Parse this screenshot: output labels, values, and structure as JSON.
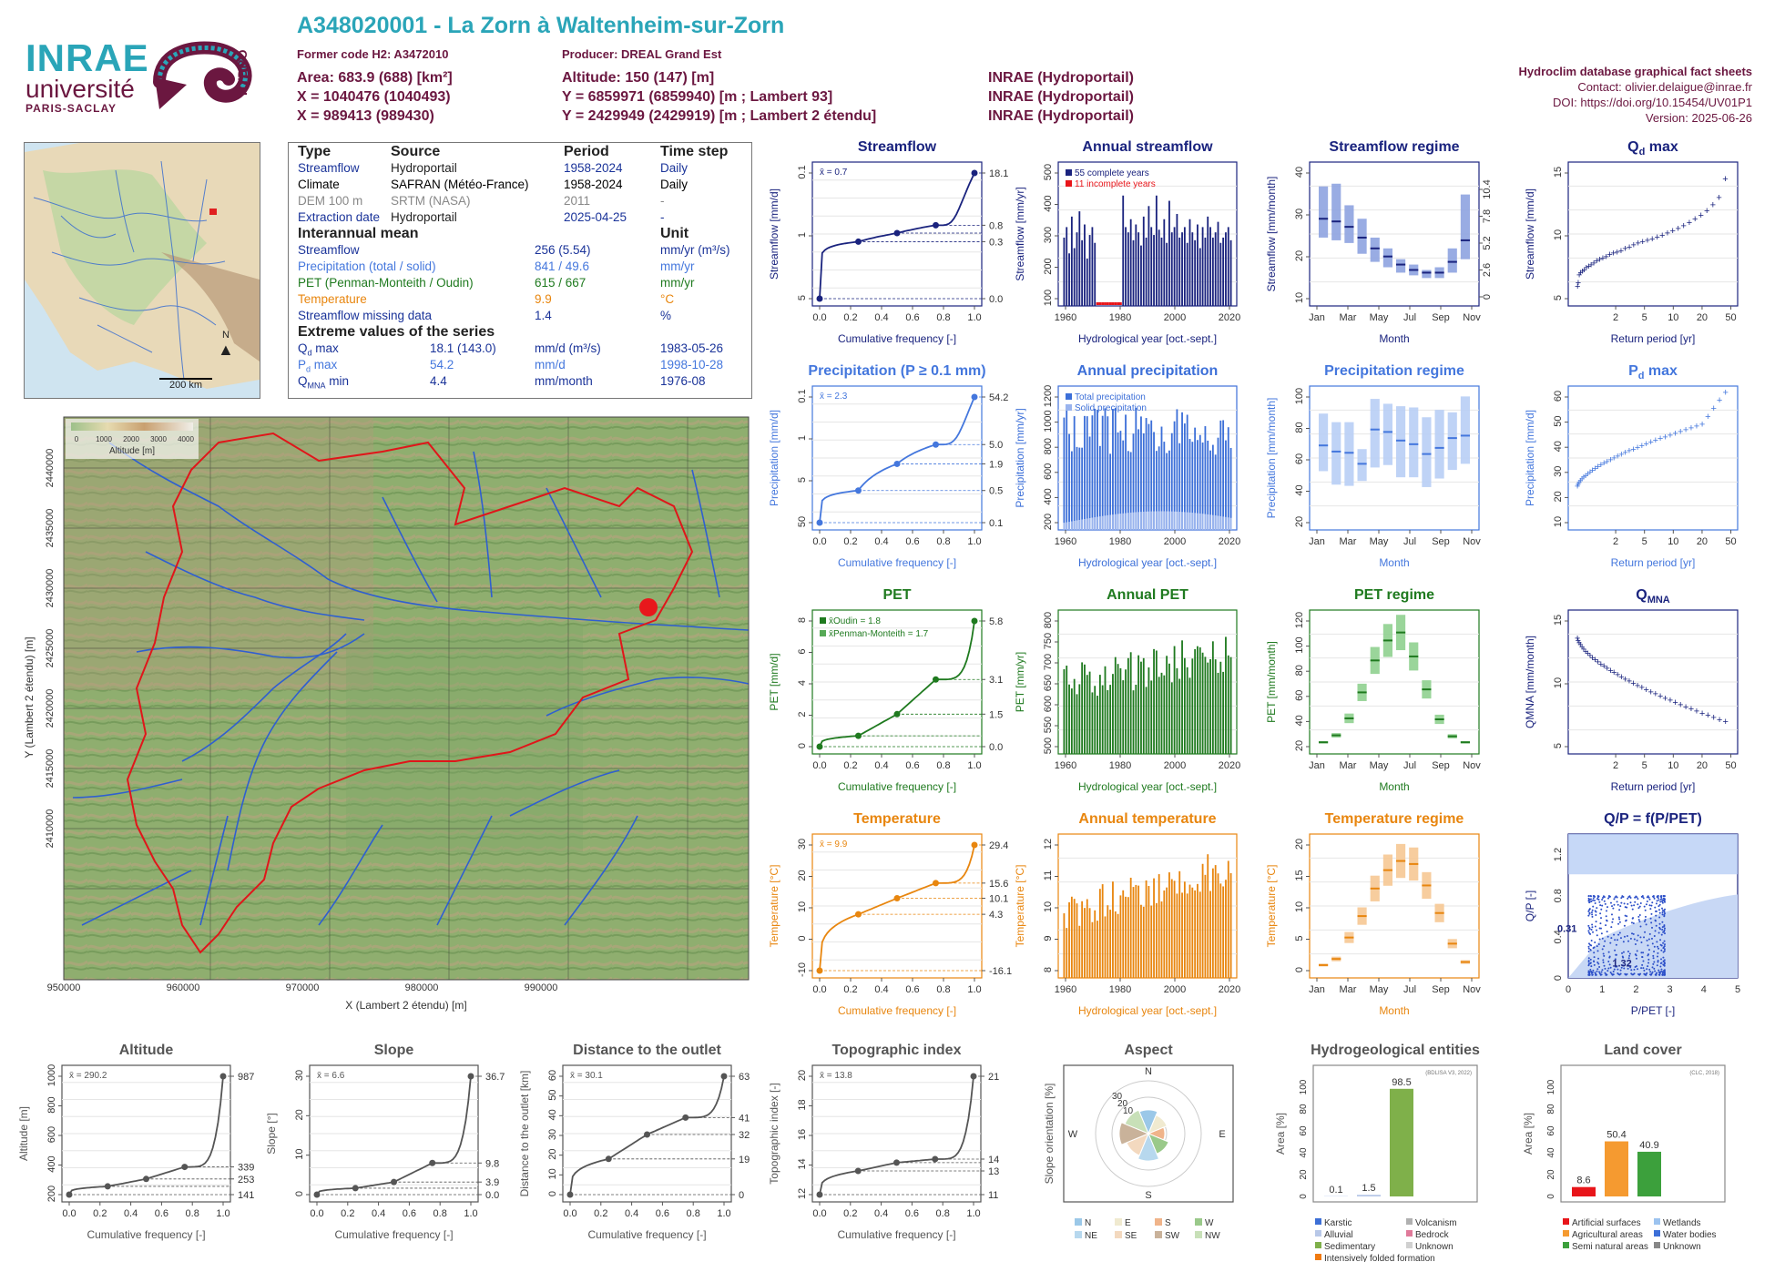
{
  "logos": {
    "inrae": "INRAE",
    "universite": "université",
    "paris_saclay": "PARIS-SACLAY",
    "hydro": "HYDRO"
  },
  "header": {
    "station_title": "A348020001 - La Zorn à Waltenheim-sur-Zorn",
    "former_code": "Former code H2: A3472010",
    "producer": "Producer: DREAL Grand Est",
    "area": "Area: 683.9 (688) [km²]",
    "altitude": "Altitude: 150 (147) [m]",
    "x93": "X = 1040476 (1040493)",
    "y93": "Y = 6859971 (6859940) [m ; Lambert 93]",
    "src1": "INRAE (Hydroportail)",
    "x2e": "X = 989413 (989430)",
    "y2e": "Y = 2429949 (2429919) [m ; Lambert 2 étendu]",
    "src2": "INRAE (Hydroportail)",
    "db": "Hydroclim database graphical fact sheets",
    "contact": "Contact: olivier.delaigue@inrae.fr",
    "doi": "DOI: https://doi.org/10.15454/UV01P1",
    "version": "Version: 2025-06-26"
  },
  "overview_map": {
    "scale": "200 km",
    "north": "N"
  },
  "info_table": {
    "h_type": "Type",
    "h_source": "Source",
    "h_period": "Period",
    "h_timestep": "Time step",
    "rows": [
      {
        "type": "Streamflow",
        "source": "Hydroportail",
        "period": "1958-2024",
        "step": "Daily",
        "color": "#1a3399"
      },
      {
        "type": "Climate",
        "source": "SAFRAN (Météo-France)",
        "period": "1958-2024",
        "step": "Daily",
        "color": "#000000"
      },
      {
        "type": "DEM 100 m",
        "source": "SRTM (NASA)",
        "period": "2011",
        "step": "-",
        "color": "#888888"
      },
      {
        "type": "Extraction date",
        "source": "Hydroportail",
        "period": "2025-04-25",
        "step": "-",
        "color": "#1a3399"
      }
    ],
    "h_interannual": "Interannual mean",
    "h_unit": "Unit",
    "means": [
      {
        "name": "Streamflow",
        "value": "256 (5.54)",
        "unit": "mm/yr (m³/s)",
        "color": "#1a3399"
      },
      {
        "name": "Precipitation (total / solid)",
        "value": "841 / 49.6",
        "unit": "mm/yr",
        "color": "#4477dd"
      },
      {
        "name": "PET (Penman-Monteith / Oudin)",
        "value": "615 / 667",
        "unit": "mm/yr",
        "color": "#1f7a1f"
      },
      {
        "name": "Temperature",
        "value": "9.9",
        "unit": "°C",
        "color": "#e8860f"
      },
      {
        "name": "Streamflow missing data",
        "value": "1.4",
        "unit": "%",
        "color": "#1a3399"
      }
    ],
    "h_extreme": "Extreme values of the series",
    "extremes": [
      {
        "sym": "Q",
        "sub": "d",
        "suffix": " max",
        "value": "18.1 (143.0)",
        "unit": "mm/d (m³/s)",
        "date": "1983-05-26",
        "color": "#1a3399"
      },
      {
        "sym": "P",
        "sub": "d",
        "suffix": " max",
        "value": "54.2",
        "unit": "mm/d",
        "date": "1998-10-28",
        "color": "#4477dd"
      },
      {
        "sym": "Q",
        "sub": "MNA",
        "suffix": " min",
        "value": "4.4",
        "unit": "mm/month",
        "date": "1976-08",
        "color": "#1a3399"
      }
    ]
  },
  "relief_map": {
    "legend_ticks": [
      "0",
      "1000",
      "2000",
      "3000",
      "4000"
    ],
    "legend_label": "Altitude [m]",
    "x_ticks": [
      "950000",
      "960000",
      "970000",
      "980000",
      "990000"
    ],
    "y_ticks": [
      "2440000",
      "2435000",
      "2430000",
      "2425000",
      "2420000",
      "2415000",
      "2410000"
    ],
    "xlabel": "X (Lambert 2 étendu) [m]",
    "ylabel": "Y (Lambert 2 étendu) [m]"
  },
  "chart_data": [
    {
      "id": "streamflow_cdf",
      "type": "line",
      "title": "Streamflow",
      "xlabel": "Cumulative frequency [-]",
      "ylabel": "Streamflow [mm/d]",
      "scale": "log",
      "mean_label": "x̄ = 0.7",
      "color": "#1a237e",
      "x": [
        0,
        0.25,
        0.5,
        0.75,
        1
      ],
      "y": [
        0.0,
        0.3,
        0.5,
        0.8,
        18.1
      ],
      "right_ticks": [
        "18.1",
        "0.8",
        "0.3",
        "0.0"
      ],
      "left_ticks": [
        "5",
        "1",
        "0.1"
      ],
      "x_ticks": [
        "0.0",
        "0.2",
        "0.4",
        "0.6",
        "0.8",
        "1.0"
      ]
    },
    {
      "id": "annual_streamflow",
      "type": "bar",
      "title": "Annual streamflow",
      "xlabel": "Hydrological year [oct.-sept.]",
      "ylabel": "Streamflow [mm/yr]",
      "color": "#1a237e",
      "legend": [
        "55 complete years",
        "11 incomplete years"
      ],
      "x_ticks": [
        "1960",
        "1980",
        "2000",
        "2020"
      ],
      "y_ticks": [
        "100",
        "200",
        "300",
        "400",
        "500"
      ],
      "values": [
        260,
        300,
        200,
        340,
        220,
        280,
        360,
        250,
        310,
        180,
        270,
        300,
        240,
        0,
        0,
        0,
        0,
        0,
        0,
        0,
        0,
        0,
        0,
        420,
        300,
        280,
        330,
        250,
        310,
        280,
        230,
        340,
        260,
        380,
        300,
        270,
        420,
        290,
        260,
        330,
        240,
        400,
        280,
        300,
        350,
        260,
        280,
        300,
        240,
        330,
        280,
        250,
        310,
        220,
        300,
        260,
        340,
        300,
        260,
        280,
        320,
        240,
        260,
        280,
        300,
        250
      ]
    },
    {
      "id": "streamflow_regime",
      "type": "bar",
      "title": "Streamflow regime",
      "xlabel": "Month",
      "ylabel": "Streamflow [mm/month]",
      "color": "#a8b8e8",
      "categories": [
        "Jan",
        "Feb",
        "Mar",
        "Apr",
        "May",
        "Jun",
        "Jul",
        "Aug",
        "Sep",
        "Oct",
        "Nov",
        "Dec"
      ],
      "x_ticks": [
        "Jan",
        "Mar",
        "May",
        "Jul",
        "Sep",
        "Nov"
      ],
      "median": [
        31,
        30,
        28,
        24,
        20,
        17,
        14,
        12,
        11,
        11,
        15,
        23
      ],
      "low": [
        24,
        23,
        22,
        18,
        15,
        13,
        11,
        10,
        9,
        9,
        11,
        16
      ],
      "high": [
        43,
        44,
        36,
        31,
        24,
        20,
        16,
        14,
        12,
        13,
        20,
        40
      ],
      "y_ticks": [
        "10",
        "20",
        "30",
        "40"
      ],
      "right_ticks": [
        "10.4",
        "7.8",
        "5.2",
        "2.6",
        "0"
      ]
    },
    {
      "id": "qd_max",
      "type": "scatter",
      "title": "Q",
      "title_sub": "d",
      "title_suffix": " max",
      "xlabel": "Return period [yr]",
      "ylabel": "Streamflow [mm/d]",
      "color": "#1a237e",
      "x_ticks": [
        "2",
        "5",
        "10",
        "20",
        "50"
      ],
      "y_ticks": [
        "5",
        "10",
        "15"
      ],
      "y": [
        1.5,
        2,
        3,
        3.3,
        3.5,
        3.7,
        4,
        4.2,
        4.4,
        4.6,
        4.9,
        5.1,
        5.3,
        5.5,
        5.8,
        6,
        6.1,
        6.3,
        6.6,
        6.8,
        7.1,
        7.3,
        7.5,
        7.7,
        7.9,
        8.1,
        8.4,
        8.7,
        9,
        9.3,
        9.7,
        10.1,
        10.6,
        11.1,
        11.7,
        12.5,
        13.5,
        16
      ]
    },
    {
      "id": "precip_cdf",
      "type": "line",
      "title": "Precipitation (P ≥ 0.1 mm)",
      "xlabel": "Cumulative frequency [-]",
      "ylabel": "Precipitation [mm/d]",
      "scale": "log",
      "mean_label": "x̄ = 2.3",
      "color": "#4477dd",
      "x": [
        0,
        0.25,
        0.5,
        0.75,
        1
      ],
      "y": [
        0.1,
        0.5,
        1.9,
        5.0,
        54.2
      ],
      "right_ticks": [
        "54.2",
        "5.0",
        "1.9",
        "0.5",
        "0.1"
      ],
      "left_ticks": [
        "50",
        "5",
        "1",
        "0.1"
      ],
      "x_ticks": [
        "0.0",
        "0.2",
        "0.4",
        "0.6",
        "0.8",
        "1.0"
      ]
    },
    {
      "id": "annual_precip",
      "type": "bar",
      "title": "Annual precipitation",
      "xlabel": "Hydrological year [oct.-sept.]",
      "ylabel": "Precipitation [mm/yr]",
      "color": "#4477dd",
      "legend": [
        "Total precipitation",
        "Solid precipitation"
      ],
      "x_ticks": [
        "1960",
        "1980",
        "2000",
        "2020"
      ],
      "y_ticks": [
        "200",
        "400",
        "600",
        "800",
        "1000",
        "1200"
      ]
    },
    {
      "id": "precip_regime",
      "type": "bar",
      "title": "Precipitation regime",
      "xlabel": "Month",
      "ylabel": "Precipitation [mm/month]",
      "color": "#b8cef5",
      "median": [
        66,
        61,
        60,
        51,
        79,
        77,
        70,
        67,
        59,
        64,
        72,
        74
      ],
      "low": [
        45,
        34,
        33,
        37,
        48,
        50,
        40,
        40,
        32,
        39,
        46,
        51
      ],
      "high": [
        92,
        85,
        85,
        63,
        104,
        100,
        98,
        97,
        89,
        95,
        93,
        106
      ],
      "y_ticks": [
        "20",
        "40",
        "60",
        "80",
        "100"
      ],
      "x_ticks": [
        "Jan",
        "Mar",
        "May",
        "Jul",
        "Sep",
        "Nov"
      ]
    },
    {
      "id": "pd_max",
      "type": "scatter",
      "title": "P",
      "title_sub": "d",
      "title_suffix": " max",
      "xlabel": "Return period [yr]",
      "ylabel": "Precipitation [mm/d]",
      "color": "#4477dd",
      "x_ticks": [
        "2",
        "5",
        "10",
        "20",
        "50"
      ],
      "y_ticks": [
        "10",
        "20",
        "30",
        "40",
        "50",
        "60"
      ]
    },
    {
      "id": "pet_cdf",
      "type": "line",
      "title": "PET",
      "xlabel": "Cumulative frequency [-]",
      "ylabel": "PET [mm/d]",
      "color": "#1f7a1f",
      "legend": [
        "x̄Oudin = 1.8",
        "x̄Penman-Monteith = 1.7"
      ],
      "x": [
        0,
        0.25,
        0.5,
        0.75,
        1
      ],
      "y": [
        0.0,
        0.5,
        1.5,
        3.1,
        5.8
      ],
      "right_ticks": [
        "5.8",
        "3.1",
        "1.5",
        "0.0"
      ],
      "left_ticks": [
        "0",
        "2",
        "4",
        "6",
        "8"
      ],
      "x_ticks": [
        "0.0",
        "0.2",
        "0.4",
        "0.6",
        "0.8",
        "1.0"
      ]
    },
    {
      "id": "annual_pet",
      "type": "bar",
      "title": "Annual PET",
      "xlabel": "Hydrological year [oct.-sept.]",
      "ylabel": "PET [mm/yr]",
      "color": "#1f7a1f",
      "x_ticks": [
        "1960",
        "1980",
        "2000",
        "2020"
      ],
      "y_ticks": [
        "500",
        "550",
        "600",
        "650",
        "700",
        "750",
        "800"
      ]
    },
    {
      "id": "pet_regime",
      "type": "bar",
      "title": "PET regime",
      "xlabel": "Month",
      "ylabel": "PET [mm/month]",
      "color": "#1f7a1f",
      "median": [
        8,
        15,
        32,
        58,
        90,
        110,
        118,
        94,
        61,
        31,
        14,
        8
      ],
      "y_ticks": [
        "20",
        "40",
        "60",
        "80",
        "100",
        "120"
      ],
      "x_ticks": [
        "Jan",
        "Mar",
        "May",
        "Jul",
        "Sep",
        "Nov"
      ]
    },
    {
      "id": "qmna",
      "type": "scatter",
      "title": "Q",
      "title_sub": "MNA",
      "title_suffix": "",
      "xlabel": "Return period [yr]",
      "ylabel": "QMNA [mm/month]",
      "color": "#1a237e",
      "x_ticks": [
        "2",
        "5",
        "10",
        "20",
        "50"
      ],
      "y_ticks": [
        "5",
        "10",
        "15"
      ]
    },
    {
      "id": "temp_cdf",
      "type": "line",
      "title": "Temperature",
      "xlabel": "Cumulative frequency [-]",
      "ylabel": "Temperature [°C]",
      "mean_label": "x̄ = 9.9",
      "color": "#e8860f",
      "x": [
        0,
        0.25,
        0.5,
        0.75,
        1
      ],
      "y": [
        -16.1,
        4.3,
        10.1,
        15.6,
        29.4
      ],
      "right_ticks": [
        "29.4",
        "15.6",
        "10.1",
        "4.3",
        "-16.1"
      ],
      "left_ticks": [
        "-10",
        "0",
        "10",
        "20",
        "30"
      ],
      "x_ticks": [
        "0.0",
        "0.2",
        "0.4",
        "0.6",
        "0.8",
        "1.0"
      ]
    },
    {
      "id": "annual_temp",
      "type": "bar",
      "title": "Annual temperature",
      "xlabel": "Hydrological year [oct.-sept.]",
      "ylabel": "Temperature [°C]",
      "color": "#e8860f",
      "x_ticks": [
        "1960",
        "1980",
        "2000",
        "2020"
      ],
      "y_ticks": [
        "8",
        "9",
        "10",
        "11",
        "12"
      ]
    },
    {
      "id": "temp_regime",
      "type": "bar",
      "title": "Temperature regime",
      "xlabel": "Month",
      "ylabel": "Temperature [°C]",
      "color": "#e8860f",
      "median": [
        1.5,
        2.5,
        6,
        9.5,
        14,
        17,
        18.5,
        18,
        14.5,
        10,
        5,
        2
      ],
      "y_ticks": [
        "0",
        "5",
        "10",
        "15",
        "20"
      ],
      "x_ticks": [
        "Jan",
        "Mar",
        "May",
        "Jul",
        "Sep",
        "Nov"
      ]
    },
    {
      "id": "qp_ppet",
      "type": "scatter",
      "title": "Q/P = f(P/PET)",
      "xlabel": "P/PET [-]",
      "ylabel": "Q/P [-]",
      "color": "#1a237e",
      "labels": [
        "0.31",
        "1.32"
      ],
      "x_ticks": [
        "0",
        "1",
        "2",
        "3",
        "4",
        "5"
      ],
      "y_ticks": [
        "0",
        "0.4",
        "0.8",
        "1.2"
      ]
    },
    {
      "id": "altitude_cdf",
      "type": "line",
      "title": "Altitude",
      "xlabel": "Cumulative frequency [-]",
      "ylabel": "Altitude [m]",
      "mean_label": "x̄ = 290.2",
      "color": "#555555",
      "x": [
        0,
        0.25,
        0.5,
        0.75,
        1
      ],
      "y": [
        141,
        200,
        253,
        339,
        987
      ],
      "right_ticks": [
        "987",
        "339",
        "253",
        "141"
      ],
      "left_ticks": [
        "200",
        "400",
        "600",
        "800",
        "1000"
      ],
      "x_ticks": [
        "0.0",
        "0.2",
        "0.4",
        "0.6",
        "0.8",
        "1.0"
      ]
    },
    {
      "id": "slope_cdf",
      "type": "line",
      "title": "Slope",
      "xlabel": "Cumulative frequency [-]",
      "ylabel": "Slope [°]",
      "mean_label": "x̄ = 6.6",
      "color": "#555555",
      "x": [
        0,
        0.25,
        0.5,
        0.75,
        1
      ],
      "y": [
        0,
        2,
        3.9,
        9.8,
        36.7
      ],
      "right_ticks": [
        "36.7",
        "9.8",
        "3.9",
        "0.0"
      ],
      "left_ticks": [
        "0",
        "10",
        "20",
        "30"
      ],
      "x_ticks": [
        "0.0",
        "0.2",
        "0.4",
        "0.6",
        "0.8",
        "1.0"
      ]
    },
    {
      "id": "distance_cdf",
      "type": "line",
      "title": "Distance to the outlet",
      "xlabel": "Cumulative frequency [-]",
      "ylabel": "Distance to the outlet [km]",
      "mean_label": "x̄ = 30.1",
      "color": "#555555",
      "x": [
        0,
        0.25,
        0.5,
        0.75,
        1
      ],
      "y": [
        0,
        19,
        32,
        41,
        63
      ],
      "right_ticks": [
        "63",
        "41",
        "32",
        "19",
        "0"
      ],
      "left_ticks": [
        "0",
        "10",
        "20",
        "30",
        "40",
        "50",
        "60"
      ],
      "x_ticks": [
        "0.0",
        "0.2",
        "0.4",
        "0.6",
        "0.8",
        "1.0"
      ]
    },
    {
      "id": "topo_cdf",
      "type": "line",
      "title": "Topographic index",
      "xlabel": "Cumulative frequency [-]",
      "ylabel": "Topographic index [-]",
      "mean_label": "x̄ = 13.8",
      "color": "#555555",
      "x": [
        0,
        0.25,
        0.5,
        0.75,
        1
      ],
      "y": [
        11,
        13,
        13.7,
        14,
        21
      ],
      "right_ticks": [
        "21",
        "14",
        "13",
        "11"
      ],
      "left_ticks": [
        "12",
        "14",
        "16",
        "18",
        "20"
      ],
      "x_ticks": [
        "0.0",
        "0.2",
        "0.4",
        "0.6",
        "0.8",
        "1.0"
      ]
    },
    {
      "id": "aspect",
      "type": "pie",
      "title": "Aspect",
      "ylabel": "Slope orientation [%]",
      "labels": [
        "N",
        "E",
        "S",
        "W"
      ],
      "rings": [
        "10",
        "20",
        "30"
      ],
      "legend": [
        "N",
        "E",
        "S",
        "W",
        "NE",
        "SE",
        "SW",
        "NW"
      ],
      "colors": [
        "#9bc8e8",
        "#f0ead0",
        "#f0b48a",
        "#9ac98a",
        "#b7d8ee",
        "#f3d9bf",
        "#c9b29a",
        "#c8e0b8"
      ]
    },
    {
      "id": "hydrogeology",
      "type": "bar",
      "title": "Hydrogeological entities",
      "ylabel": "Area [%]",
      "source": "(BDLISA V3, 2022)",
      "values": [
        0.1,
        1.5,
        98.5
      ],
      "value_labels": [
        "0.1",
        "1.5",
        "98.5"
      ],
      "y_ticks": [
        "0",
        "20",
        "40",
        "60",
        "80",
        "100"
      ],
      "legend": [
        "Karstic",
        "Volcanism",
        "Alluvial",
        "Bedrock",
        "Sedimentary",
        "Unknown",
        "Intensively folded formation"
      ],
      "colors": [
        "#3d6fd6",
        "#b0b0b0",
        "#b8c8e8",
        "#e07a9a",
        "#7fb04a",
        "#d0d0d0",
        "#f07a10"
      ]
    },
    {
      "id": "land_cover",
      "type": "bar",
      "title": "Land cover",
      "ylabel": "Area [%]",
      "source": "(CLC, 2018)",
      "values": [
        8.6,
        50.4,
        40.9
      ],
      "value_labels": [
        "8.6",
        "50.4",
        "40.9"
      ],
      "y_ticks": [
        "0",
        "20",
        "40",
        "60",
        "80",
        "100"
      ],
      "legend": [
        "Artificial surfaces",
        "Wetlands",
        "Agricultural areas",
        "Water bodies",
        "Semi natural areas",
        "Unknown"
      ],
      "colors": [
        "#e8151a",
        "#9cc3ef",
        "#f59a30",
        "#3c6fd8",
        "#3ca03c",
        "#888888"
      ]
    }
  ]
}
